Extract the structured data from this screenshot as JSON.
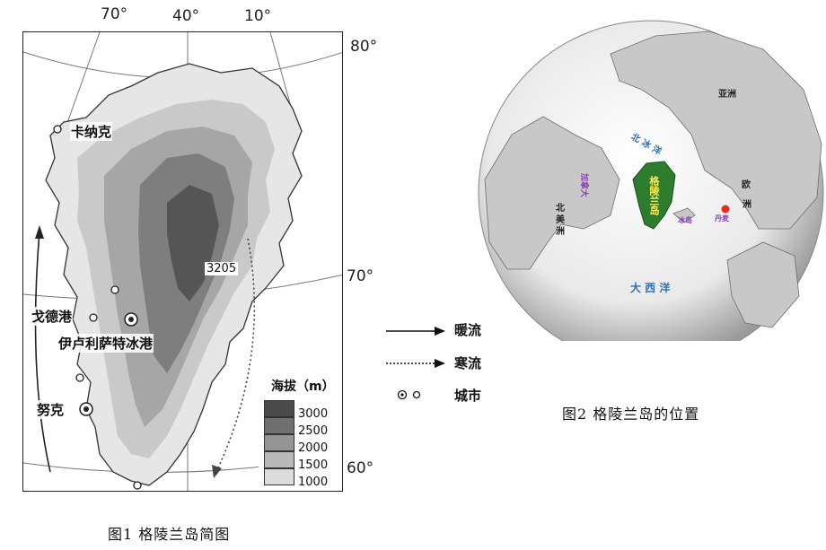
{
  "figure1": {
    "caption": "图1 格陵兰岛简图",
    "longitudes": [
      "70°",
      "40°",
      "10°"
    ],
    "latitudes": [
      "80°",
      "70°",
      "60°"
    ],
    "peak_label": "3205",
    "cities": {
      "kanak": "卡纳克",
      "godthab": "戈德港",
      "ilulissat": "伊卢利萨特冰港",
      "nuuk": "努克"
    },
    "legend": {
      "title": "海拔（m）",
      "levels": [
        {
          "value": "3000",
          "color": "#4a4a4a"
        },
        {
          "value": "2500",
          "color": "#707070"
        },
        {
          "value": "2000",
          "color": "#959595"
        },
        {
          "value": "1500",
          "color": "#b9b9b9"
        },
        {
          "value": "1000",
          "color": "#dcdcdc"
        }
      ]
    }
  },
  "key": {
    "warm": "暖流",
    "cold": "寒流",
    "city": "城市"
  },
  "figure2": {
    "caption": "图2 格陵兰岛的位置",
    "labels": {
      "asia": "亚洲",
      "europe_1": "欧",
      "europe_2": "洲",
      "arctic": "北 冰 洋",
      "canada": "加拿大",
      "north_america_1": "北",
      "north_america_2": "美",
      "north_america_3": "洲",
      "greenland": "格陵兰岛",
      "iceland": "冰岛",
      "denmark": "丹麦",
      "atlantic": "大 西 洋"
    },
    "colors": {
      "greenland": "#2e7d2e",
      "denmark_marker": "#e03020",
      "ocean": "#2f6fb0",
      "purple_label": "#8a3fb0"
    }
  }
}
